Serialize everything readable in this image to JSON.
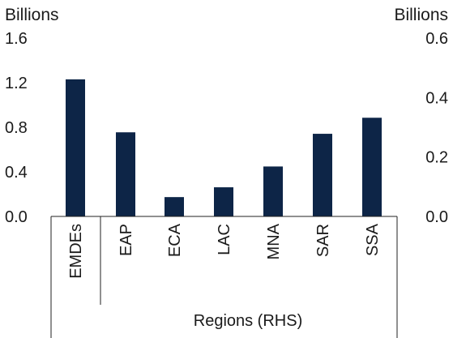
{
  "chart_data": {
    "type": "bar",
    "left_axis": {
      "unit_label": "Billions",
      "ylim": [
        0,
        1.6
      ],
      "ticks": [
        "0.0",
        "0.4",
        "0.8",
        "1.2",
        "1.6"
      ],
      "tick_values": [
        0,
        0.4,
        0.8,
        1.2,
        1.6
      ]
    },
    "right_axis": {
      "unit_label": "Billions",
      "ylim": [
        0,
        0.6
      ],
      "ticks": [
        "0.0",
        "0.2",
        "0.4",
        "0.6"
      ],
      "tick_values": [
        0,
        0.2,
        0.4,
        0.6
      ]
    },
    "categories": [
      "EMDEs",
      "EAP",
      "ECA",
      "LAC",
      "MNA",
      "SAR",
      "SSA"
    ],
    "values": [
      1.23,
      0.283,
      0.065,
      0.098,
      0.168,
      0.278,
      0.332
    ],
    "value_axis": [
      "left",
      "right",
      "right",
      "right",
      "right",
      "right",
      "right"
    ],
    "group_label": "Regions (RHS)",
    "bar_color": "#0d2547",
    "grid": false,
    "legend": "none"
  }
}
